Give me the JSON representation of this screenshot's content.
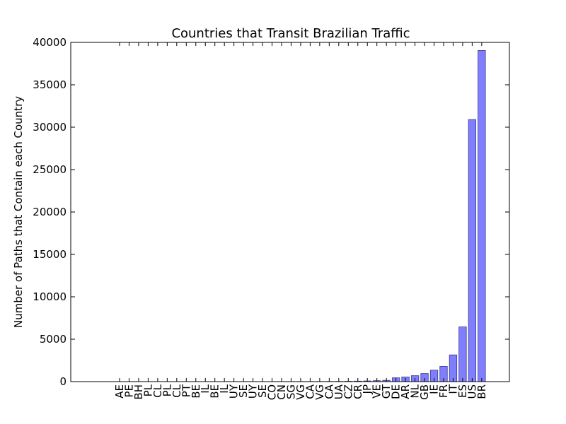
{
  "chart_data": {
    "type": "bar",
    "title": "Countries that Transit Brazilian  Traffic",
    "xlabel": "",
    "ylabel": "Number of Paths that Contain each Country",
    "ylim": [
      0,
      40000
    ],
    "yticks": [
      0,
      5000,
      10000,
      15000,
      20000,
      25000,
      30000,
      35000,
      40000
    ],
    "grid": false,
    "bar_color": "#7f7ffe",
    "bar_edge_color": "#3a3a8c",
    "categories": [
      "AE",
      "PE",
      "BH",
      "PL",
      "CL",
      "PL",
      "CL",
      "PT",
      "BE",
      "IL",
      "BE",
      "IL",
      "UY",
      "SE",
      "UY",
      "SE",
      "CO",
      "CN",
      "SG",
      "VG",
      "CA",
      "VG",
      "CA",
      "UA",
      "CZ",
      "CR",
      "JP",
      "VE",
      "GT",
      "DE",
      "AR",
      "NL",
      "GB",
      "IE",
      "FR",
      "IT",
      "ES",
      "US",
      "BR"
    ],
    "values": [
      2,
      2,
      2,
      3,
      3,
      3,
      4,
      4,
      5,
      5,
      6,
      6,
      7,
      8,
      8,
      9,
      10,
      11,
      12,
      14,
      15,
      17,
      20,
      25,
      40,
      60,
      80,
      110,
      150,
      450,
      550,
      700,
      950,
      1350,
      1800,
      3150,
      6450,
      30900,
      39050
    ]
  }
}
